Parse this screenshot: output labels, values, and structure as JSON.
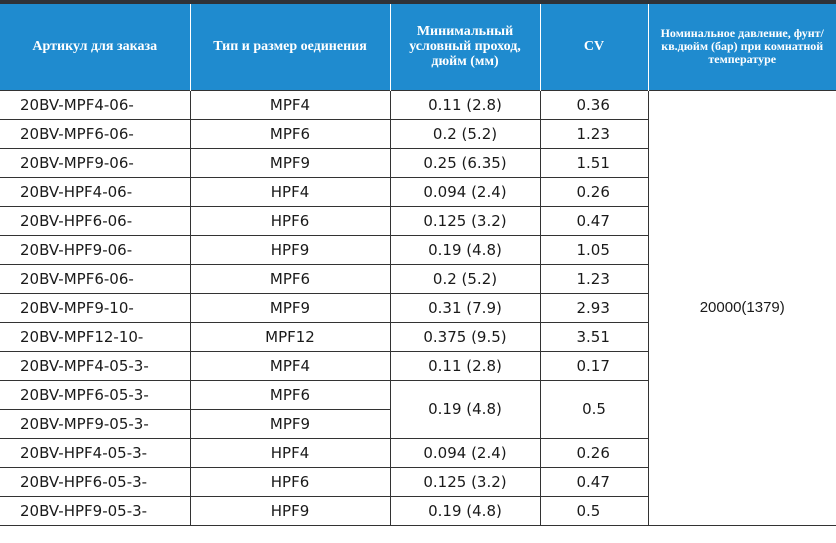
{
  "header": {
    "article": "Артикул для заказа",
    "connection": "Тип и размер оединения",
    "bore": "Минимальный условный проход, дюйм (мм)",
    "cv": "CV",
    "pressure": "Номинальное давление, фунт/ кв.дюйм (бар) при комнатной температуре"
  },
  "pressure_value": "20000(1379)",
  "rows": [
    {
      "article": "20BV-MPF4-06-",
      "connection": "MPF4",
      "bore": "0.11 (2.8)",
      "cv": "0.36"
    },
    {
      "article": "20BV-MPF6-06-",
      "connection": "MPF6",
      "bore": "0.2 (5.2)",
      "cv": "1.23"
    },
    {
      "article": "20BV-MPF9-06-",
      "connection": "MPF9",
      "bore": "0.25 (6.35)",
      "cv": "1.51"
    },
    {
      "article": "20BV-HPF4-06-",
      "connection": "HPF4",
      "bore": "0.094 (2.4)",
      "cv": "0.26"
    },
    {
      "article": "20BV-HPF6-06-",
      "connection": "HPF6",
      "bore": "0.125 (3.2)",
      "cv": "0.47"
    },
    {
      "article": "20BV-HPF9-06-",
      "connection": "HPF9",
      "bore": "0.19 (4.8)",
      "cv": "1.05"
    },
    {
      "article": "20BV-MPF6-06-",
      "connection": "MPF6",
      "bore": "0.2 (5.2)",
      "cv": "1.23"
    },
    {
      "article": "20BV-MPF9-10-",
      "connection": "MPF9",
      "bore": "0.31 (7.9)",
      "cv": "2.93"
    },
    {
      "article": "20BV-MPF12-10-",
      "connection": "MPF12",
      "bore": "0.375 (9.5)",
      "cv": "3.51"
    },
    {
      "article": "20BV-MPF4-05-3-",
      "connection": "MPF4",
      "bore": "0.11 (2.8)",
      "cv": "0.17"
    },
    {
      "article": "20BV-MPF6-05-3-",
      "connection": "MPF6",
      "bore": "0.19 (4.8)",
      "cv": "0.5"
    },
    {
      "article": "20BV-MPF9-05-3-",
      "connection": "MPF9"
    },
    {
      "article": "20BV-HPF4-05-3-",
      "connection": "HPF4",
      "bore": "0.094 (2.4)",
      "cv": "0.26"
    },
    {
      "article": "20BV-HPF6-05-3-",
      "connection": "HPF6",
      "bore": "0.125 (3.2)",
      "cv": "0.47"
    },
    {
      "article": "20BV-HPF9-05-3-",
      "connection": "HPF9",
      "bore": "0.19 (4.8)",
      "cv": "0.5"
    }
  ]
}
